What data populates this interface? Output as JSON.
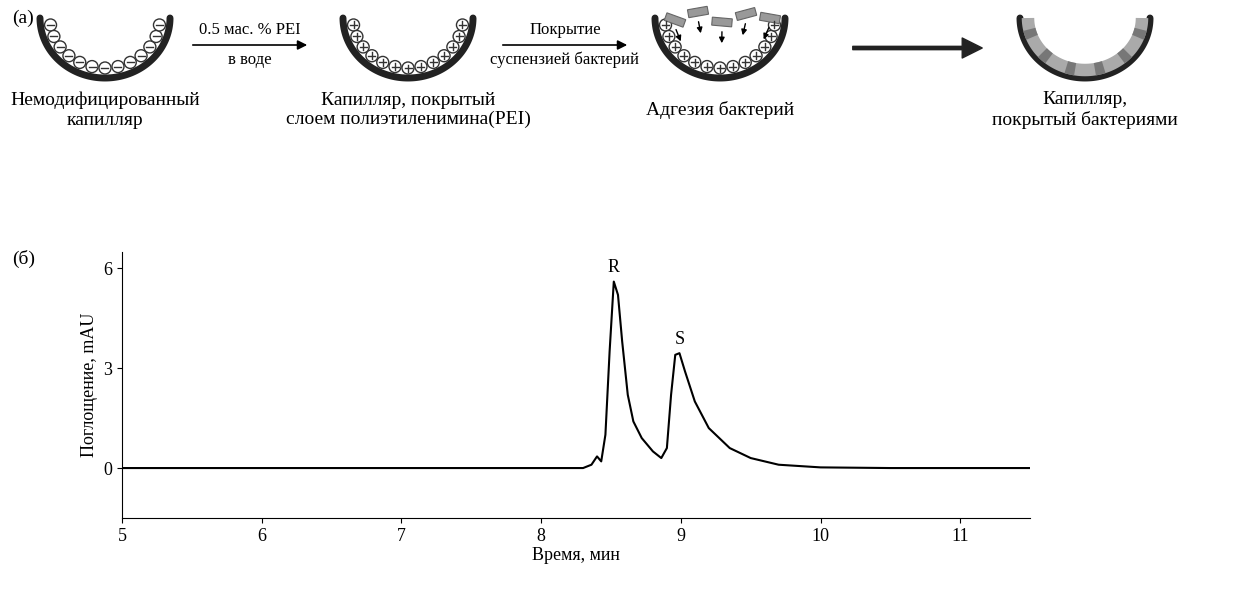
{
  "panel_a": {
    "label": "(a)",
    "steps": [
      "Немодифицированный\nкапилляр",
      "Капилляр, покрытый\nслоем полиэтиленимина(PEI)",
      "Адгезия бактерий",
      "Капилляр,\nпокрытый бактериями"
    ],
    "arrows": [
      {
        "above": "0.5 мас. % PEI",
        "below": "в воде"
      },
      {
        "above": "Покрытие",
        "below": "суспензией бактерий"
      }
    ]
  },
  "chart_data": {
    "type": "line",
    "panel_label": "(б)",
    "x_label": "Время, мин",
    "y_label": "Поглощение, mAU",
    "x": [
      5.0,
      6.0,
      7.0,
      8.0,
      8.3,
      8.36,
      8.4,
      8.43,
      8.46,
      8.49,
      8.52,
      8.55,
      8.58,
      8.62,
      8.66,
      8.72,
      8.8,
      8.86,
      8.9,
      8.93,
      8.96,
      8.99,
      9.03,
      9.1,
      9.2,
      9.35,
      9.5,
      9.7,
      10.0,
      10.5,
      11.0,
      11.5
    ],
    "values": [
      0,
      0,
      0,
      0,
      0,
      0.1,
      0.35,
      0.2,
      1.0,
      3.5,
      5.6,
      5.2,
      3.8,
      2.2,
      1.4,
      0.9,
      0.5,
      0.3,
      0.6,
      2.2,
      3.4,
      3.45,
      2.9,
      2.0,
      1.2,
      0.6,
      0.3,
      0.1,
      0.02,
      0,
      0,
      0
    ],
    "color": "#000000",
    "xlim": [
      5,
      11.5
    ],
    "xticks": [
      5,
      6,
      7,
      8,
      9,
      10,
      11
    ],
    "ylim": [
      -1.5,
      6.5
    ],
    "yticks": [
      0,
      3,
      6
    ],
    "annotations": [
      {
        "text": "R",
        "x": 8.52,
        "y": 5.6
      },
      {
        "text": "S",
        "x": 8.99,
        "y": 3.45
      }
    ]
  }
}
